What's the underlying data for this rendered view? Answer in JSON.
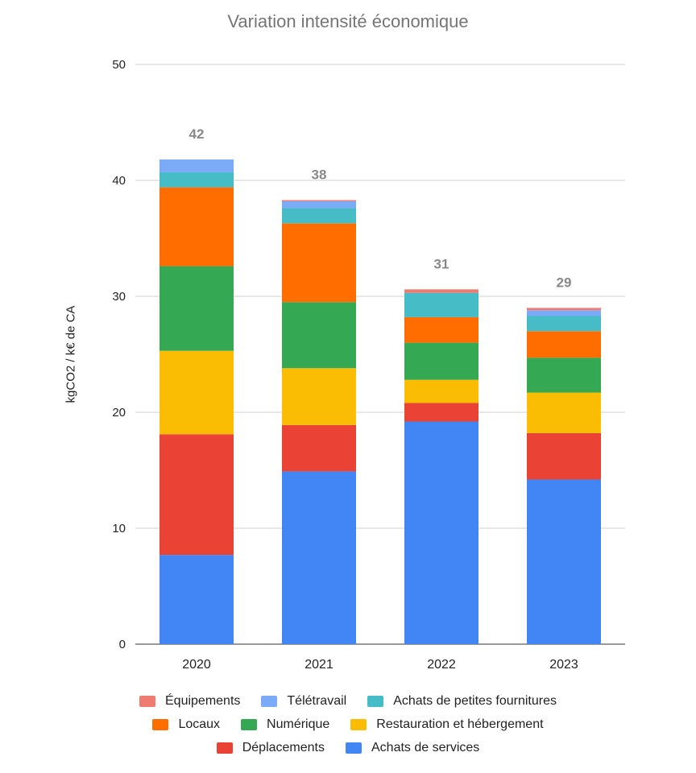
{
  "chart_data": {
    "type": "bar",
    "stacked": true,
    "title": "Variation intensité économique",
    "xlabel": "",
    "ylabel": "kgCO2 / k€ de CA",
    "ylim": [
      0,
      50
    ],
    "yticks": [
      0,
      10,
      20,
      30,
      40,
      50
    ],
    "grid": true,
    "legend_position": "bottom",
    "categories": [
      "2020",
      "2021",
      "2022",
      "2023"
    ],
    "totals": [
      "42",
      "38",
      "31",
      "29"
    ],
    "series": [
      {
        "name": "Achats de services",
        "color": "#4285f4",
        "values": [
          7.7,
          14.9,
          19.2,
          14.2
        ]
      },
      {
        "name": "Déplacements",
        "color": "#ea4335",
        "values": [
          10.4,
          4.0,
          1.6,
          4.0
        ]
      },
      {
        "name": "Restauration et hébergement",
        "color": "#fbbc04",
        "values": [
          7.2,
          4.9,
          2.0,
          3.5
        ]
      },
      {
        "name": "Numérique",
        "color": "#34a853",
        "values": [
          7.3,
          5.7,
          3.2,
          3.0
        ]
      },
      {
        "name": "Locaux",
        "color": "#ff6d01",
        "values": [
          6.8,
          6.8,
          2.2,
          2.3
        ]
      },
      {
        "name": "Achats de petites fournitures",
        "color": "#46bdc6",
        "values": [
          1.3,
          1.3,
          2.1,
          1.3
        ]
      },
      {
        "name": "Télétravail",
        "color": "#7baaf7",
        "values": [
          1.1,
          0.6,
          0.0,
          0.5
        ]
      },
      {
        "name": "Équipements",
        "color": "#f07b72",
        "values": [
          0.0,
          0.1,
          0.3,
          0.2
        ]
      }
    ],
    "legend_rows": [
      [
        7,
        6,
        5
      ],
      [
        4,
        3,
        2
      ],
      [
        1,
        0
      ]
    ]
  }
}
